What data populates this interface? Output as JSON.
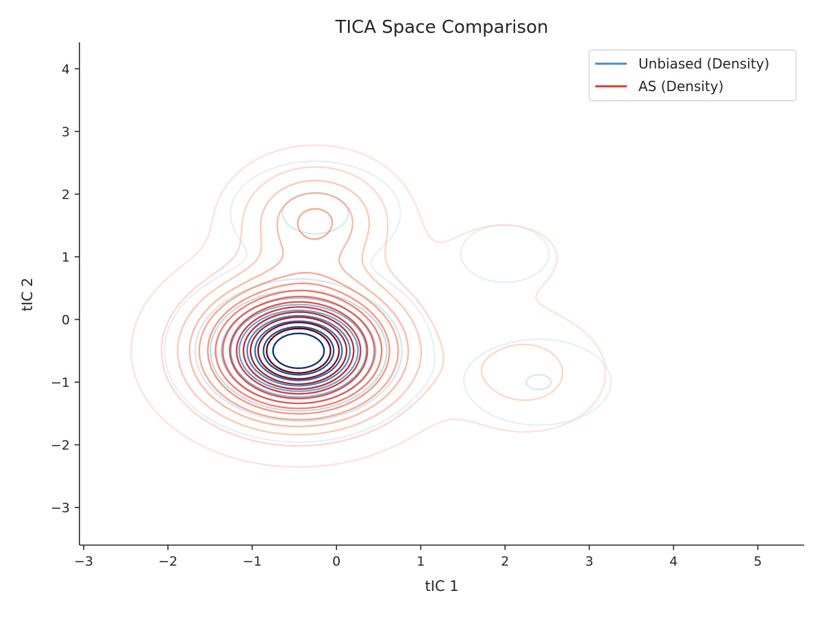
{
  "chart_data": {
    "type": "contour",
    "title": "TICA Space Comparison",
    "xlabel": "tIC 1",
    "ylabel": "tIC 2",
    "xlim": [
      -3.05,
      5.55
    ],
    "ylim": [
      -3.6,
      4.42
    ],
    "xticks": [
      -3,
      -2,
      -1,
      0,
      1,
      2,
      3,
      4,
      5
    ],
    "yticks": [
      -3,
      -2,
      -1,
      0,
      1,
      2,
      3,
      4
    ],
    "xtick_labels": [
      "−3",
      "−2",
      "−1",
      "0",
      "1",
      "2",
      "3",
      "4",
      "5"
    ],
    "ytick_labels": [
      "−3",
      "−2",
      "−1",
      "0",
      "1",
      "2",
      "3",
      "4"
    ],
    "grid": false,
    "legend_position": "top-right",
    "series": [
      {
        "name": "Unbiased (Density)",
        "legend_color": "#3f8fc5",
        "colormap": "Blues",
        "levels": 10,
        "components": [
          {
            "center": [
              -0.45,
              -0.5
            ],
            "sigma": [
              0.6,
              0.55
            ],
            "weight": 1.0
          },
          {
            "center": [
              -0.25,
              1.7
            ],
            "sigma": [
              0.55,
              0.45
            ],
            "weight": 0.16
          },
          {
            "center": [
              2.4,
              -1.0
            ],
            "sigma": [
              0.5,
              0.4
            ],
            "weight": 0.13
          },
          {
            "center": [
              2.0,
              1.05
            ],
            "sigma": [
              0.4,
              0.35
            ],
            "weight": 0.07
          }
        ]
      },
      {
        "name": "AS (Density)",
        "legend_color": "#e03426",
        "colormap": "Reds",
        "levels": 14,
        "components": [
          {
            "center": [
              -0.45,
              -0.5
            ],
            "sigma": [
              0.75,
              0.7
            ],
            "weight": 1.0
          },
          {
            "center": [
              -0.25,
              1.6
            ],
            "sigma": [
              0.55,
              0.55
            ],
            "weight": 0.3
          },
          {
            "center": [
              2.25,
              -0.85
            ],
            "sigma": [
              0.55,
              0.55
            ],
            "weight": 0.13
          },
          {
            "center": [
              2.0,
              1.0
            ],
            "sigma": [
              0.6,
              0.5
            ],
            "weight": 0.05
          }
        ]
      }
    ]
  }
}
